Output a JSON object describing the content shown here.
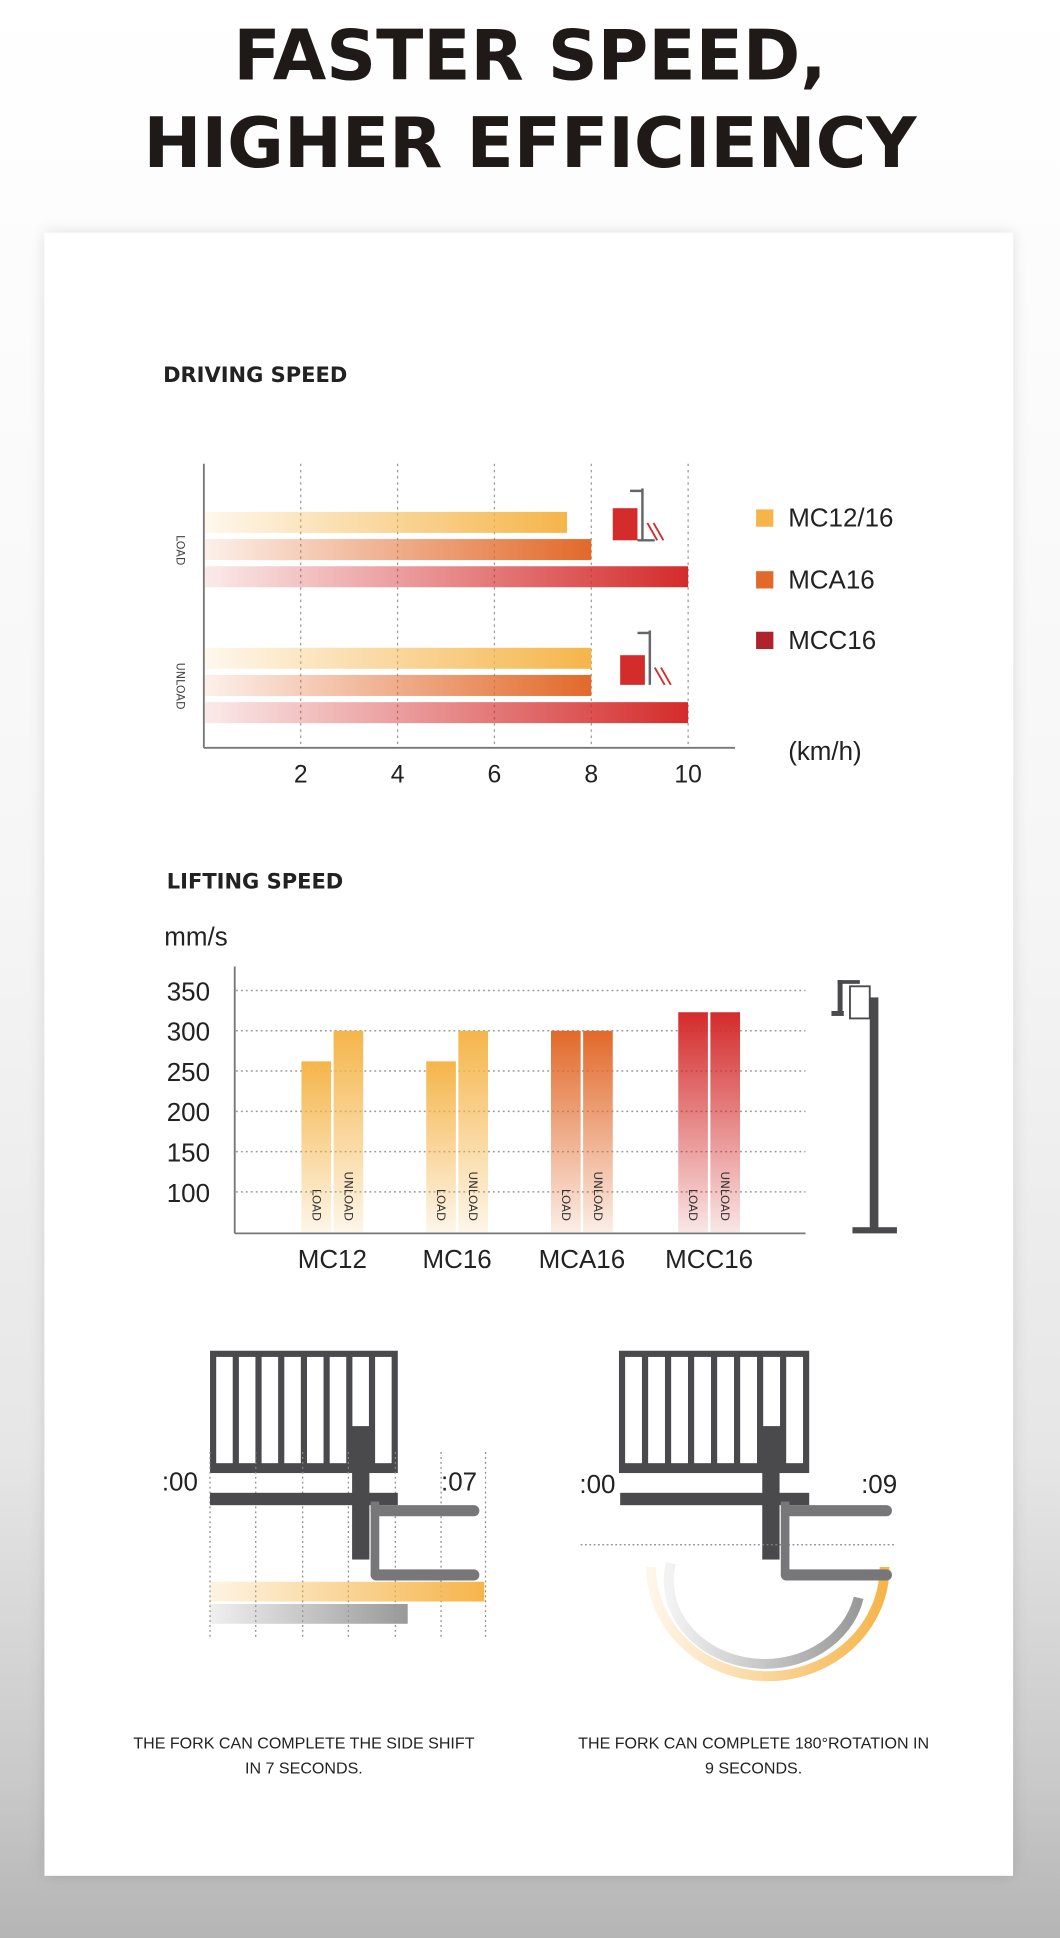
{
  "header": {
    "title_line1": "FASTER SPEED,",
    "title_line2": "HIGHER EFFICIENCY"
  },
  "colors": {
    "mc12_16": "#f5b54a",
    "mca16": "#e2692a",
    "mcc16": "#d42b2b",
    "mcc16_legend": "#b0222c",
    "dark": "#4a4a4d",
    "fork": "#77777a"
  },
  "chart_data": [
    {
      "type": "bar",
      "orientation": "horizontal",
      "title": "DRIVING SPEED",
      "xlabel": "(km/h)",
      "categories": [
        "LOAD",
        "UNLOAD"
      ],
      "xticks": [
        "2",
        "4",
        "6",
        "8",
        "10"
      ],
      "xlim": [
        0,
        11
      ],
      "grid": "vertical dashed",
      "legend": "right",
      "series": [
        {
          "name": "MC12/16",
          "values": [
            7.5,
            8
          ]
        },
        {
          "name": "MCA16",
          "values": [
            8,
            8
          ]
        },
        {
          "name": "MCC16",
          "values": [
            10,
            10
          ]
        }
      ]
    },
    {
      "type": "bar",
      "title": "LIFTING SPEED",
      "ylabel": "mm/s",
      "categories": [
        "MC12",
        "MC16",
        "MCA16",
        "MCC16"
      ],
      "bar_labels": [
        "LOAD",
        "UNLOAD"
      ],
      "yticks": [
        "100",
        "150",
        "200",
        "250",
        "300",
        "350"
      ],
      "ylim": [
        50,
        365
      ],
      "grid": "horizontal dotted",
      "series": [
        {
          "name": "LOAD",
          "values": [
            262,
            262,
            300,
            323
          ]
        },
        {
          "name": "UNLOAD",
          "values": [
            300,
            300,
            300,
            323
          ]
        }
      ]
    }
  ],
  "fork": {
    "side_shift": {
      "start": ":00",
      "end": ":07",
      "caption_line1": "THE FORK CAN COMPLETE THE SIDE SHIFT",
      "caption_line2": "IN 7 SECONDS."
    },
    "rotation": {
      "start": ":00",
      "end": ":09",
      "caption_line1": "THE FORK CAN COMPLETE 180°ROTATION IN",
      "caption_line2": "9 SECONDS."
    }
  }
}
